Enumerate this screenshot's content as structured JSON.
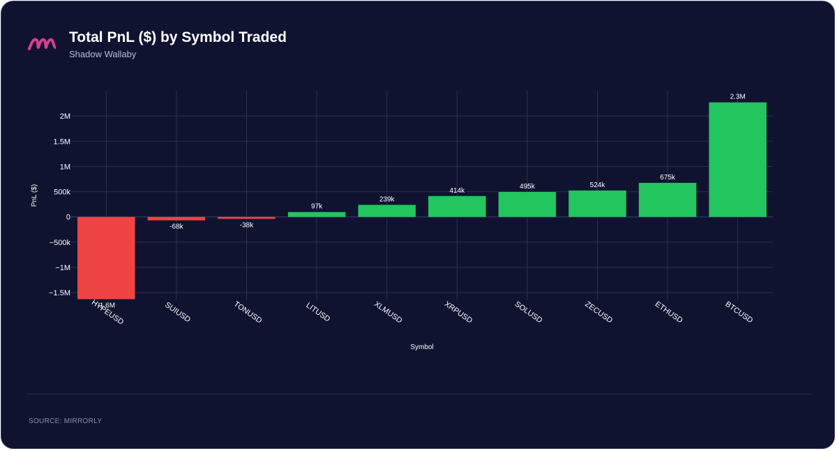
{
  "header": {
    "title": "Total PnL ($) by Symbol Traded",
    "subtitle": "Shadow Wallaby",
    "logo_icon": "mirrorly-m-logo-icon"
  },
  "footer": {
    "source": "SOURCE: MIRRORLY"
  },
  "colors": {
    "background": "#0f1330",
    "positive": "#22c55e",
    "negative": "#ef4444",
    "grid": "#2c3152",
    "axis_text": "#ffffff",
    "logo": "#d6408f"
  },
  "chart_data": {
    "type": "bar",
    "title": "Total PnL ($) by Symbol Traded",
    "subtitle": "Shadow Wallaby",
    "xlabel": "Symbol",
    "ylabel": "PnL ($)",
    "categories": [
      "HYPEUSD",
      "SUIUSD",
      "TONUSD",
      "LITUSD",
      "XLMUSD",
      "XRPUSD",
      "SOLUSD",
      "ZECUSD",
      "ETHUSD",
      "BTCUSD"
    ],
    "values": [
      -1630000,
      -68000,
      -38000,
      97000,
      239000,
      414000,
      495000,
      524000,
      675000,
      2270000
    ],
    "data_labels": [
      "-1.6M",
      "-68k",
      "-38k",
      "97k",
      "239k",
      "414k",
      "495k",
      "524k",
      "675k",
      "2.3M"
    ],
    "y_ticks": [
      -1500000,
      -1000000,
      -500000,
      0,
      500000,
      1000000,
      1500000,
      2000000
    ],
    "y_tick_labels": [
      "−1.5M",
      "−1M",
      "−500k",
      "0",
      "500k",
      "1M",
      "1.5M",
      "2M"
    ],
    "ylim": [
      -1650000,
      2500000
    ],
    "grid": true,
    "legend": "none"
  }
}
